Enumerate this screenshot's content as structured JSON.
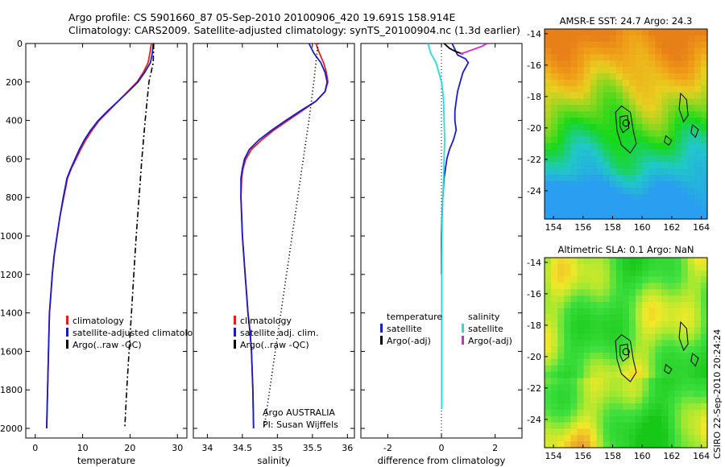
{
  "header": {
    "line1": "Argo profile: CS 5901660_87 05-Sep-2010 20100906_420 19.691S 158.914E",
    "line2": "Climatology: CARS2009. Satellite-adjusted climatology: synTS_20100904.nc (1.3d earlier)"
  },
  "side_note": "CSIRO 22-Sep-2010 20:24:24",
  "float_note": {
    "line1": "Argo AUSTRALIA",
    "line2": "PI: Susan Wijffels"
  },
  "colors": {
    "red": "#e02020",
    "blue": "#1a1ad0",
    "black": "#000000",
    "cyan": "#20e0e0",
    "magenta": "#e020e0"
  },
  "chart_data": [
    {
      "type": "line",
      "xlabel": "temperature",
      "ylim": [
        2050,
        0
      ],
      "xlim": [
        -2,
        32
      ],
      "xticks": [
        0,
        10,
        20,
        30
      ],
      "yticks": [
        0,
        200,
        400,
        600,
        800,
        1000,
        1200,
        1400,
        1600,
        1800,
        2000
      ],
      "legend_placement": "lower-left",
      "series": [
        {
          "name": "climatology",
          "color": "#e02020",
          "style": "solid",
          "points": [
            [
              24.5,
              0
            ],
            [
              24.2,
              50
            ],
            [
              23.8,
              100
            ],
            [
              22.8,
              150
            ],
            [
              21.5,
              200
            ],
            [
              19.5,
              250
            ],
            [
              17.5,
              300
            ],
            [
              15.5,
              350
            ],
            [
              13.5,
              400
            ],
            [
              12.0,
              450
            ],
            [
              10.7,
              500
            ],
            [
              9.6,
              550
            ],
            [
              8.6,
              600
            ],
            [
              7.6,
              650
            ],
            [
              6.8,
              700
            ],
            [
              6.0,
              800
            ],
            [
              5.2,
              900
            ],
            [
              4.6,
              1000
            ],
            [
              4.0,
              1100
            ],
            [
              3.6,
              1200
            ],
            [
              3.3,
              1300
            ],
            [
              3.0,
              1400
            ],
            [
              2.8,
              1600
            ],
            [
              2.6,
              1800
            ],
            [
              2.4,
              2000
            ]
          ]
        },
        {
          "name": "satellite-adjusted climatology",
          "color": "#1a1ad0",
          "style": "solid",
          "points": [
            [
              24.9,
              0
            ],
            [
              24.7,
              50
            ],
            [
              24.3,
              100
            ],
            [
              23.1,
              150
            ],
            [
              21.7,
              200
            ],
            [
              19.6,
              250
            ],
            [
              17.5,
              300
            ],
            [
              15.3,
              350
            ],
            [
              13.3,
              400
            ],
            [
              11.7,
              450
            ],
            [
              10.4,
              500
            ],
            [
              9.3,
              550
            ],
            [
              8.4,
              600
            ],
            [
              7.5,
              650
            ],
            [
              6.7,
              700
            ],
            [
              5.9,
              800
            ],
            [
              5.2,
              900
            ],
            [
              4.6,
              1000
            ],
            [
              4.0,
              1100
            ],
            [
              3.6,
              1200
            ],
            [
              3.3,
              1300
            ],
            [
              3.0,
              1400
            ],
            [
              2.8,
              1600
            ],
            [
              2.6,
              1800
            ],
            [
              2.4,
              2000
            ]
          ]
        },
        {
          "name": "Argo(..raw -QC)",
          "color": "#000000",
          "style": "dashdot",
          "points": [
            [
              25.0,
              0
            ],
            [
              24.9,
              100
            ],
            [
              24.0,
              200
            ],
            [
              23.2,
              400
            ],
            [
              22.5,
              600
            ],
            [
              21.9,
              800
            ],
            [
              21.3,
              1000
            ],
            [
              20.8,
              1200
            ],
            [
              20.3,
              1400
            ],
            [
              19.8,
              1600
            ],
            [
              19.3,
              1800
            ],
            [
              18.9,
              2000
            ]
          ]
        }
      ]
    },
    {
      "type": "line",
      "xlabel": "salinity",
      "ylim": [
        2050,
        0
      ],
      "xlim": [
        33.8,
        36.1
      ],
      "xticks": [
        34,
        34.5,
        35,
        35.5,
        36
      ],
      "legend_placement": "lower-left",
      "series": [
        {
          "name": "climatology",
          "color": "#e02020",
          "style": "solid",
          "points": [
            [
              35.55,
              0
            ],
            [
              35.6,
              50
            ],
            [
              35.66,
              100
            ],
            [
              35.7,
              150
            ],
            [
              35.72,
              200
            ],
            [
              35.68,
              250
            ],
            [
              35.55,
              300
            ],
            [
              35.35,
              350
            ],
            [
              35.15,
              400
            ],
            [
              34.95,
              450
            ],
            [
              34.78,
              500
            ],
            [
              34.63,
              550
            ],
            [
              34.55,
              600
            ],
            [
              34.51,
              650
            ],
            [
              34.49,
              700
            ],
            [
              34.48,
              800
            ],
            [
              34.49,
              900
            ],
            [
              34.5,
              1000
            ],
            [
              34.52,
              1100
            ],
            [
              34.54,
              1200
            ],
            [
              34.56,
              1300
            ],
            [
              34.58,
              1400
            ],
            [
              34.61,
              1500
            ],
            [
              34.63,
              1600
            ],
            [
              34.65,
              1800
            ],
            [
              34.66,
              2000
            ]
          ]
        },
        {
          "name": "satellite adj. clim.",
          "color": "#1a1ad0",
          "style": "solid",
          "points": [
            [
              35.45,
              0
            ],
            [
              35.52,
              50
            ],
            [
              35.62,
              100
            ],
            [
              35.68,
              150
            ],
            [
              35.71,
              200
            ],
            [
              35.68,
              250
            ],
            [
              35.55,
              300
            ],
            [
              35.33,
              350
            ],
            [
              35.12,
              400
            ],
            [
              34.92,
              450
            ],
            [
              34.74,
              500
            ],
            [
              34.6,
              550
            ],
            [
              34.53,
              600
            ],
            [
              34.5,
              650
            ],
            [
              34.48,
              700
            ],
            [
              34.48,
              800
            ],
            [
              34.49,
              900
            ],
            [
              34.5,
              1000
            ],
            [
              34.52,
              1100
            ],
            [
              34.54,
              1200
            ],
            [
              34.56,
              1300
            ],
            [
              34.58,
              1400
            ],
            [
              34.61,
              1500
            ],
            [
              34.63,
              1600
            ],
            [
              34.65,
              1800
            ],
            [
              34.66,
              2000
            ]
          ]
        },
        {
          "name": "Argo(..raw -QC)",
          "color": "#000000",
          "style": "dotted",
          "points": [
            [
              35.58,
              0
            ],
            [
              35.52,
              200
            ],
            [
              35.45,
              400
            ],
            [
              35.37,
              600
            ],
            [
              35.29,
              800
            ],
            [
              35.21,
              1000
            ],
            [
              35.13,
              1200
            ],
            [
              35.05,
              1400
            ],
            [
              34.97,
              1600
            ],
            [
              34.89,
              1800
            ],
            [
              34.81,
              2000
            ]
          ]
        }
      ]
    },
    {
      "type": "line",
      "xlabel": "difference from climatology",
      "ylim": [
        2050,
        0
      ],
      "xlim": [
        -3,
        3
      ],
      "xticks": [
        -2,
        0,
        2
      ],
      "zero_line": "dotted",
      "legend_placement": "lower-center",
      "legend_groups": [
        {
          "title": "temperature",
          "items": [
            {
              "name": "satellite",
              "color": "#1a1ad0"
            },
            {
              "name": "Argo(-adj)",
              "color": "#000000"
            }
          ]
        },
        {
          "title": "salinity",
          "items": [
            {
              "name": "satellite",
              "color": "#20e0e0"
            },
            {
              "name": "Argo(-adj)",
              "color": "#e020e0"
            }
          ]
        }
      ],
      "series": [
        {
          "name": "temperature satellite",
          "color": "#1a1ad0",
          "style": "solid",
          "points": [
            [
              0.4,
              0
            ],
            [
              0.5,
              30
            ],
            [
              0.6,
              60
            ],
            [
              0.9,
              80
            ],
            [
              1.0,
              100
            ],
            [
              0.8,
              150
            ],
            [
              0.7,
              200
            ],
            [
              0.6,
              250
            ],
            [
              0.55,
              300
            ],
            [
              0.5,
              350
            ],
            [
              0.5,
              400
            ],
            [
              0.55,
              450
            ],
            [
              0.45,
              500
            ],
            [
              0.3,
              550
            ],
            [
              0.2,
              600
            ],
            [
              0.1,
              700
            ],
            [
              0.05,
              800
            ],
            [
              0.02,
              900
            ],
            [
              0.0,
              1000
            ],
            [
              0.0,
              1200
            ]
          ]
        },
        {
          "name": "temperature Argo(-adj)",
          "color": "#000000",
          "style": "solid",
          "points": [
            [
              0.1,
              0
            ],
            [
              0.3,
              25
            ],
            [
              0.5,
              40
            ],
            [
              0.8,
              55
            ]
          ]
        },
        {
          "name": "salinity satellite",
          "color": "#20e0e0",
          "style": "solid",
          "points": [
            [
              -0.5,
              0
            ],
            [
              -0.4,
              50
            ],
            [
              -0.2,
              100
            ],
            [
              -0.1,
              150
            ],
            [
              0.0,
              200
            ],
            [
              0.05,
              250
            ],
            [
              0.08,
              300
            ],
            [
              0.1,
              400
            ],
            [
              0.12,
              500
            ],
            [
              0.1,
              600
            ],
            [
              0.08,
              700
            ],
            [
              0.05,
              800
            ],
            [
              0.03,
              900
            ],
            [
              0.02,
              1000
            ],
            [
              0.01,
              1200
            ],
            [
              0.01,
              1400
            ],
            [
              0.01,
              1600
            ],
            [
              0.01,
              1700
            ],
            [
              0.01,
              1900
            ]
          ]
        },
        {
          "name": "salinity Argo(-adj)",
          "color": "#e020e0",
          "style": "solid",
          "points": [
            [
              1.7,
              0
            ],
            [
              1.5,
              15
            ],
            [
              1.2,
              30
            ],
            [
              0.9,
              45
            ],
            [
              0.7,
              55
            ]
          ]
        }
      ]
    },
    {
      "type": "heatmap",
      "title": "AMSR-E SST: 24.7 Argo: 24.3",
      "xlim": [
        153.4,
        164.4
      ],
      "ylim": [
        -25.8,
        -13.7
      ],
      "xticks": [
        154,
        156,
        158,
        160,
        162,
        164
      ],
      "yticks": [
        -14,
        -16,
        -18,
        -20,
        -22,
        -24
      ],
      "palette": "warm-top-cool-bottom"
    },
    {
      "type": "heatmap",
      "title": "Altimetric SLA: 0.1 Argo: NaN",
      "xlim": [
        153.4,
        164.4
      ],
      "ylim": [
        -25.8,
        -13.7
      ],
      "xticks": [
        154,
        156,
        158,
        160,
        162,
        164
      ],
      "yticks": [
        -14,
        -16,
        -18,
        -20,
        -22,
        -24
      ],
      "palette": "green-yellow"
    }
  ]
}
